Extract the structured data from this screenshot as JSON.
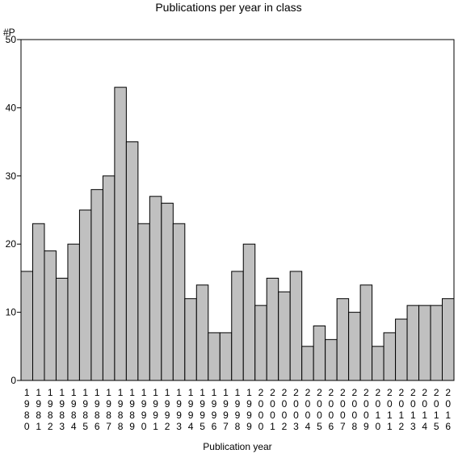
{
  "chart_data": {
    "type": "bar",
    "title": "Publications per year in class",
    "xlabel": "Publication year",
    "ylabel": "#P",
    "ylim": [
      0,
      50
    ],
    "yticks": [
      0,
      10,
      20,
      30,
      40,
      50
    ],
    "grid": false,
    "legend": "none",
    "bar_color": "#c0c0c0",
    "categories": [
      "1980",
      "1981",
      "1982",
      "1983",
      "1984",
      "1985",
      "1986",
      "1987",
      "1988",
      "1989",
      "1990",
      "1991",
      "1992",
      "1993",
      "1994",
      "1995",
      "1996",
      "1997",
      "1998",
      "1999",
      "2000",
      "2001",
      "2002",
      "2003",
      "2004",
      "2005",
      "2006",
      "2007",
      "2008",
      "2009",
      "2010",
      "2011",
      "2012",
      "2013",
      "2014",
      "2015",
      "2016"
    ],
    "values": [
      16,
      23,
      19,
      15,
      20,
      25,
      28,
      30,
      43,
      35,
      23,
      27,
      26,
      23,
      12,
      14,
      7,
      7,
      16,
      20,
      11,
      15,
      13,
      16,
      5,
      8,
      6,
      12,
      10,
      14,
      5,
      7,
      9,
      11,
      11,
      11,
      12
    ]
  }
}
